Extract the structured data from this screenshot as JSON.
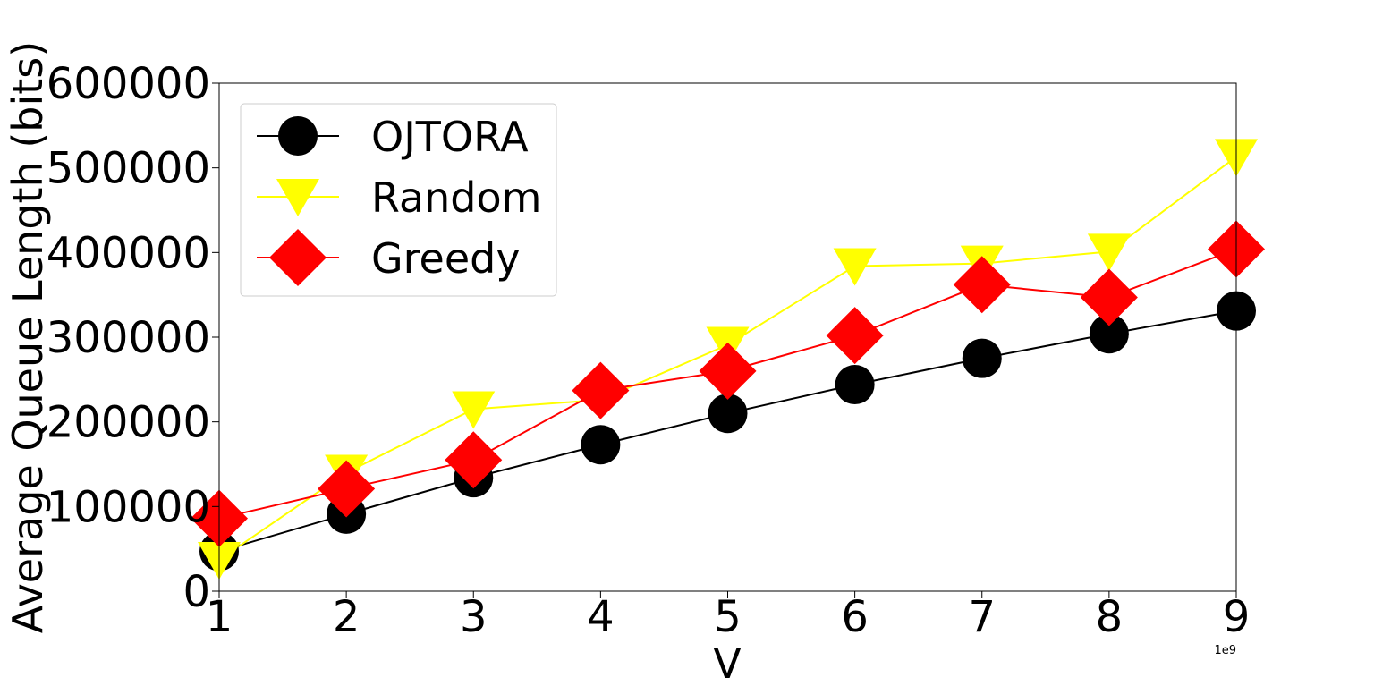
{
  "chart_data": {
    "type": "line",
    "xlabel": "V",
    "ylabel": "Average Queue Length (bits)",
    "x_offset_label": "1e9",
    "x": [
      1,
      2,
      3,
      4,
      5,
      6,
      7,
      8,
      9
    ],
    "xlim": [
      1,
      9
    ],
    "ylim": [
      0,
      600000
    ],
    "xticks": [
      "1",
      "2",
      "3",
      "4",
      "5",
      "6",
      "7",
      "8",
      "9"
    ],
    "yticks": [
      "0",
      "100000",
      "200000",
      "300000",
      "400000",
      "500000",
      "600000"
    ],
    "grid": false,
    "legend_position": "top-left",
    "series": [
      {
        "name": "OJTORA",
        "color": "#000000",
        "marker": "circle",
        "values": [
          47000,
          91000,
          134000,
          173000,
          210000,
          244000,
          275000,
          304000,
          331000
        ]
      },
      {
        "name": "Random",
        "color": "#ffff00",
        "marker": "triangle-down",
        "values": [
          37000,
          140000,
          215000,
          226000,
          291000,
          384000,
          387000,
          401000,
          513000
        ]
      },
      {
        "name": "Greedy",
        "color": "#ff0000",
        "marker": "diamond",
        "values": [
          86000,
          121000,
          155000,
          237000,
          260000,
          302000,
          362000,
          347000,
          404000
        ]
      }
    ]
  }
}
